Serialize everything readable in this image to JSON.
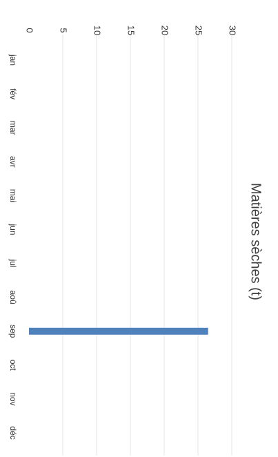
{
  "chart_data": {
    "type": "bar",
    "title": "Matières sèches (t)",
    "categories": [
      "jan",
      "fév",
      "mar",
      "avr",
      "mai",
      "jun",
      "jul",
      "aoû",
      "sep",
      "oct",
      "nov",
      "déc"
    ],
    "series": [
      {
        "values": [
          0,
          0,
          0,
          0,
          0,
          0,
          0,
          0,
          26.5,
          0,
          0,
          0
        ]
      }
    ],
    "ylim": [
      0,
      30
    ],
    "yticks": [
      0,
      5,
      10,
      15,
      20,
      25,
      30
    ],
    "grid": true,
    "colors": {
      "bar": "#4f81bd",
      "grid": "#e4e4e4",
      "text": "#333333"
    },
    "orientation": "rotated-90-clockwise"
  }
}
